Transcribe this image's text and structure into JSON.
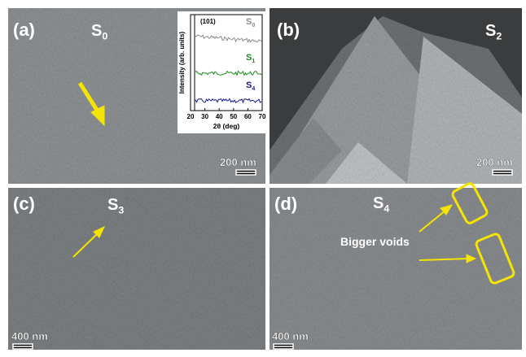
{
  "panels": [
    {
      "label": "(a)",
      "sample": {
        "base": "S",
        "sub": "0"
      },
      "scale_bar": "200 nm"
    },
    {
      "label": "(b)",
      "sample": {
        "base": "S",
        "sub": "2"
      },
      "scale_bar": "200 nm"
    },
    {
      "label": "(c)",
      "sample": {
        "base": "S",
        "sub": "3"
      },
      "scale_bar": "400 nm"
    },
    {
      "label": "(d)",
      "sample": {
        "base": "S",
        "sub": "4"
      },
      "scale_bar": "400 nm",
      "annotation": "Bigger voids"
    }
  ],
  "inset": {
    "xlabel": "2θ (deg)",
    "ylabel": "Intensity (arb. units)",
    "annotation": "(101)",
    "xlim": [
      20,
      70
    ],
    "xticks": [
      20,
      30,
      40,
      50,
      60,
      70
    ],
    "legend": [
      {
        "base": "S",
        "sub": "0",
        "color": "#8a8a8a"
      },
      {
        "base": "S",
        "sub": "1",
        "color": "#1a8a1a"
      },
      {
        "base": "S",
        "sub": "4",
        "color": "#1a1a8a"
      }
    ]
  }
}
